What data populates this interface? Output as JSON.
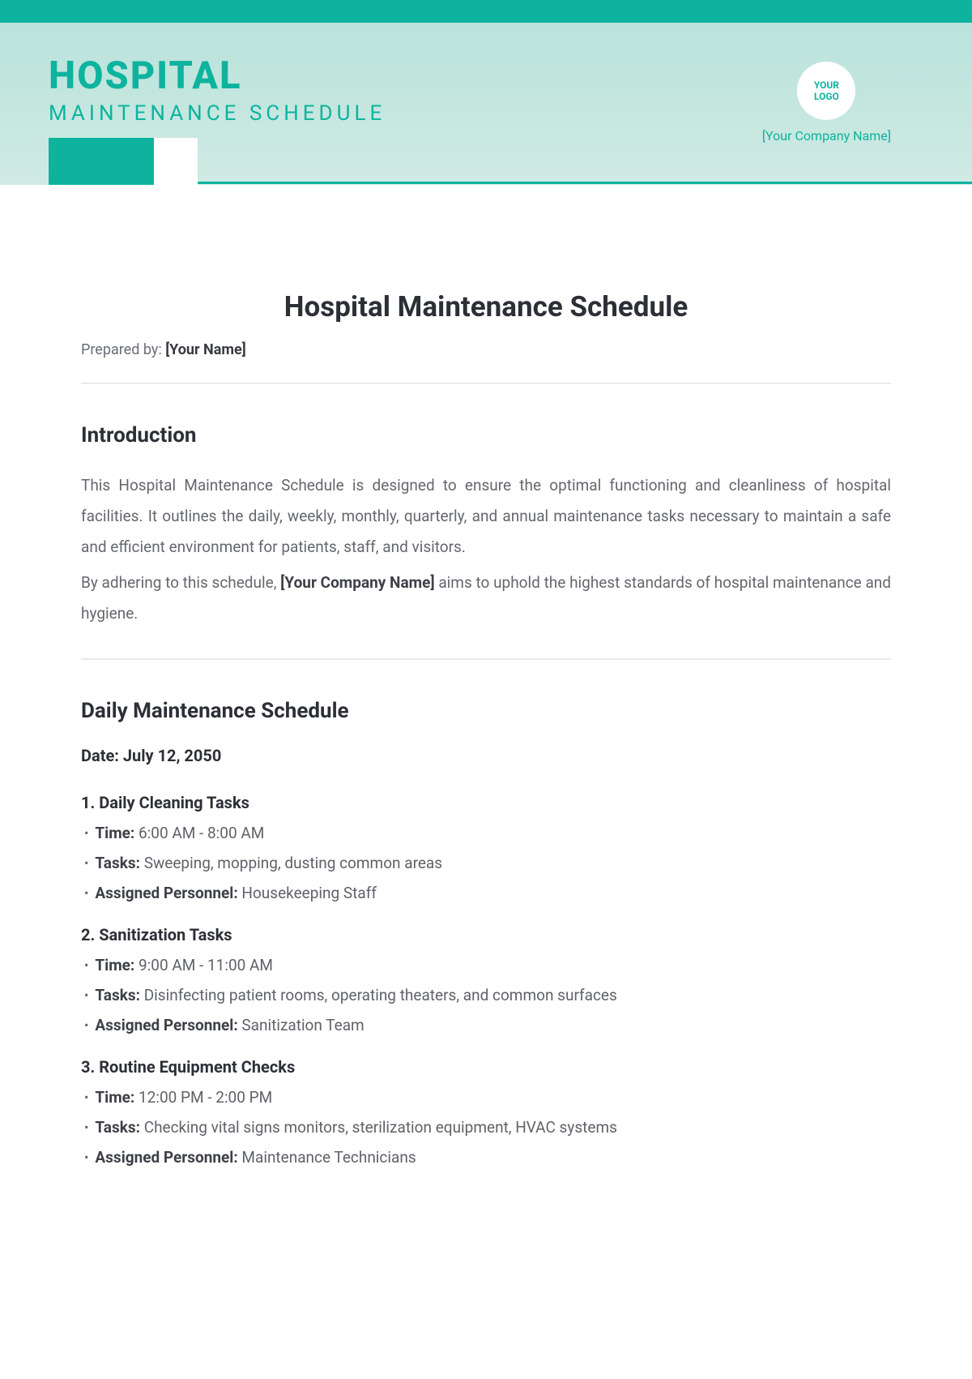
{
  "colors": {
    "accent": "#0eb39e",
    "header_bg_top": "#b9e3db",
    "header_bg_bottom": "#cfeae3",
    "body_text": "#383b41",
    "muted_text": "#64676e",
    "divider": "#e9eaec",
    "white": "#ffffff"
  },
  "header": {
    "title_line1": "HOSPITAL",
    "title_line2": "MAINTENANCE SCHEDULE",
    "logo_text_line1": "YOUR",
    "logo_text_line2": "LOGO",
    "company_placeholder": "[Your Company Name]"
  },
  "document": {
    "title": "Hospital Maintenance Schedule",
    "prepared_by_label": "Prepared by: ",
    "prepared_by_value": "[Your Name]"
  },
  "introduction": {
    "heading": "Introduction",
    "p1": "This Hospital Maintenance Schedule is designed to ensure the optimal functioning and cleanliness of hospital facilities. It outlines the daily, weekly, monthly, quarterly, and annual maintenance tasks necessary to maintain a safe and efficient environment for patients, staff, and visitors.",
    "p2_prefix": "By adhering to this schedule, ",
    "p2_bold": "[Your Company Name]",
    "p2_suffix": " aims to uphold the highest standards of hospital maintenance and hygiene."
  },
  "daily": {
    "heading": "Daily Maintenance Schedule",
    "date_label": "Date: ",
    "date_value": "July 12, 2050",
    "labels": {
      "time": "Time:",
      "tasks": "Tasks:",
      "assigned": "Assigned Personnel:"
    },
    "tasks": [
      {
        "num_title": "1. Daily Cleaning Tasks",
        "time": " 6:00 AM - 8:00 AM",
        "tasks": " Sweeping, mopping, dusting common areas",
        "assigned": " Housekeeping Staff"
      },
      {
        "num_title": "2. Sanitization Tasks",
        "time": " 9:00 AM - 11:00 AM",
        "tasks": " Disinfecting patient rooms, operating theaters, and common surfaces",
        "assigned": " Sanitization Team"
      },
      {
        "num_title": "3. Routine Equipment Checks",
        "time": " 12:00 PM - 2:00 PM",
        "tasks": " Checking vital signs monitors, sterilization equipment, HVAC systems",
        "assigned": " Maintenance Technicians"
      }
    ]
  }
}
